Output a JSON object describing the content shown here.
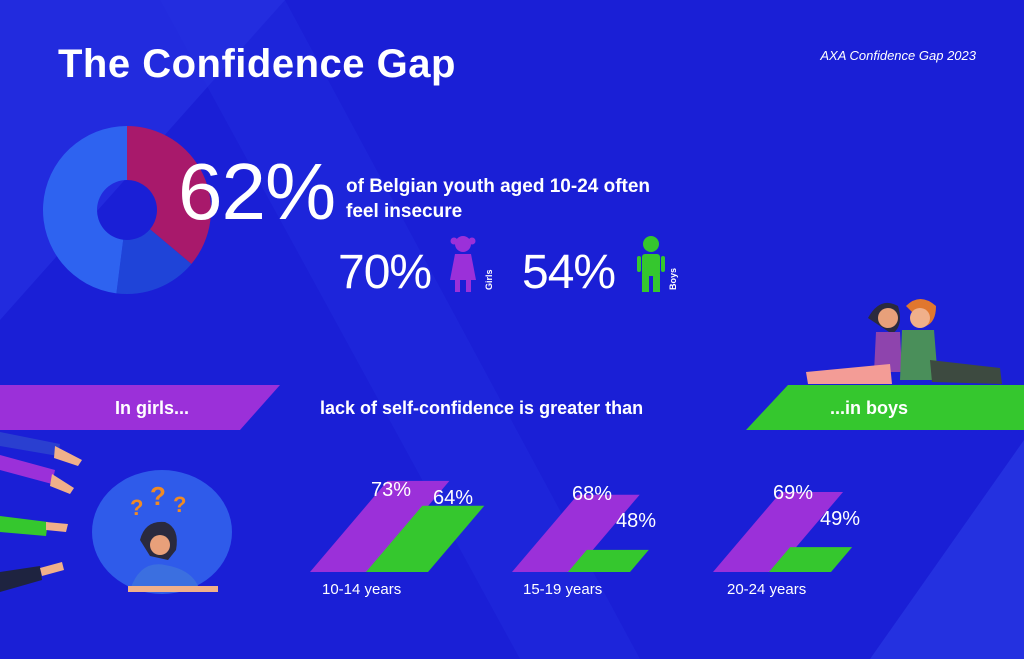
{
  "title": "The Confidence Gap",
  "source": "AXA Confidence Gap 2023",
  "headline": {
    "value": "62%",
    "text": "of Belgian youth aged 10-24 often feel insecure"
  },
  "gender": {
    "girls": {
      "value": "70%",
      "label": "Girls"
    },
    "boys": {
      "value": "54%",
      "label": "Boys"
    }
  },
  "comparison": {
    "left": "In girls...",
    "middle": "lack of self-confidence is greater than",
    "right": "...in boys"
  },
  "colors": {
    "background": "#1a1fd6",
    "girls": "#9b30d9",
    "boys": "#35c72e",
    "donut_blue": "#2e63f0",
    "donut_red": "#a8196b"
  },
  "chart_data": {
    "type": "bar",
    "title": "The Confidence Gap",
    "categories": [
      "10-14 years",
      "15-19 years",
      "20-24 years"
    ],
    "series": [
      {
        "name": "Girls",
        "values": [
          73,
          68,
          69
        ],
        "labels": [
          "73%",
          "68%",
          "69%"
        ]
      },
      {
        "name": "Boys",
        "values": [
          64,
          48,
          49
        ],
        "labels": [
          "64%",
          "48%",
          "49%"
        ]
      }
    ],
    "ylim": [
      0,
      100
    ],
    "donut": {
      "value": 62
    }
  }
}
